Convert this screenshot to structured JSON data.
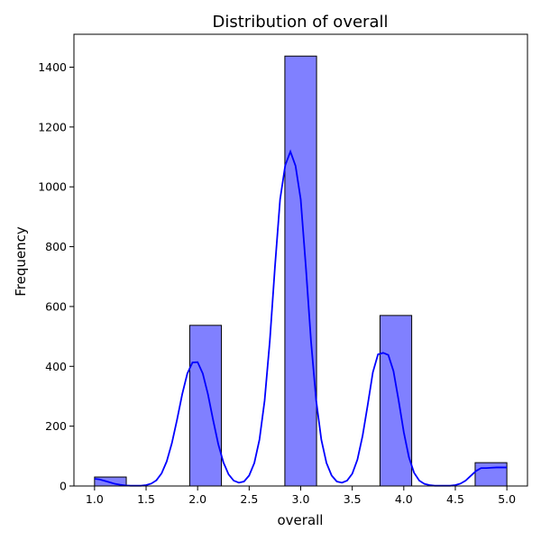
{
  "chart_data": {
    "type": "bar",
    "title": "Distribution of overall",
    "xlabel": "overall",
    "ylabel": "Frequency",
    "xlim": [
      0.8,
      5.2
    ],
    "ylim": [
      0,
      1510
    ],
    "xticks": [
      1.0,
      1.5,
      2.0,
      2.5,
      3.0,
      3.5,
      4.0,
      4.5,
      5.0
    ],
    "xtick_labels": [
      "1.0",
      "1.5",
      "2.0",
      "2.5",
      "3.0",
      "3.5",
      "4.0",
      "4.5",
      "5.0"
    ],
    "yticks": [
      0,
      200,
      400,
      600,
      800,
      1000,
      1200,
      1400
    ],
    "ytick_labels": [
      "0",
      "200",
      "400",
      "600",
      "800",
      "1000",
      "1200",
      "1400"
    ],
    "grid": false,
    "bar_color": "#8080ff",
    "bar_edge_color": "#000000",
    "kde_color": "#0000ff",
    "bins": [
      {
        "x0": 1.0,
        "x1": 1.3077,
        "count": 30
      },
      {
        "x0": 1.3077,
        "x1": 1.6154,
        "count": 0
      },
      {
        "x0": 1.6154,
        "x1": 1.9231,
        "count": 0
      },
      {
        "x0": 1.9231,
        "x1": 2.2308,
        "count": 537
      },
      {
        "x0": 2.2308,
        "x1": 2.5385,
        "count": 0
      },
      {
        "x0": 2.5385,
        "x1": 2.8462,
        "count": 0
      },
      {
        "x0": 2.8462,
        "x1": 3.1538,
        "count": 1437
      },
      {
        "x0": 3.1538,
        "x1": 3.4615,
        "count": 0
      },
      {
        "x0": 3.4615,
        "x1": 3.7692,
        "count": 0
      },
      {
        "x0": 3.7692,
        "x1": 4.0769,
        "count": 570
      },
      {
        "x0": 4.0769,
        "x1": 4.3846,
        "count": 0
      },
      {
        "x0": 4.3846,
        "x1": 4.6923,
        "count": 0
      },
      {
        "x0": 4.6923,
        "x1": 5.0,
        "count": 78
      }
    ],
    "kde": {
      "x": [
        1.0,
        1.05,
        1.1,
        1.15,
        1.2,
        1.25,
        1.3,
        1.35,
        1.4,
        1.45,
        1.5,
        1.55,
        1.6,
        1.65,
        1.7,
        1.75,
        1.8,
        1.85,
        1.9,
        1.95,
        2.0,
        2.05,
        2.1,
        2.15,
        2.2,
        2.25,
        2.3,
        2.35,
        2.4,
        2.45,
        2.5,
        2.55,
        2.6,
        2.65,
        2.7,
        2.75,
        2.8,
        2.85,
        2.9,
        2.95,
        3.0,
        3.05,
        3.1,
        3.15,
        3.2,
        3.25,
        3.3,
        3.35,
        3.4,
        3.45,
        3.5,
        3.55,
        3.6,
        3.65,
        3.7,
        3.75,
        3.8,
        3.85,
        3.9,
        3.95,
        4.0,
        4.05,
        4.1,
        4.15,
        4.2,
        4.25,
        4.3,
        4.35,
        4.4,
        4.45,
        4.5,
        4.55,
        4.6,
        4.65,
        4.7,
        4.75,
        4.8,
        4.85,
        4.9,
        4.95,
        5.0
      ],
      "y": [
        24,
        22,
        17,
        12,
        7,
        4,
        2,
        1,
        1,
        1,
        3,
        8,
        19,
        42,
        82,
        143,
        221,
        306,
        376,
        413,
        414,
        376,
        307,
        221,
        140,
        79,
        39,
        18,
        11,
        15,
        35,
        77,
        155,
        286,
        483,
        732,
        958,
        1072,
        1118,
        1070,
        958,
        732,
        484,
        286,
        155,
        77,
        35,
        15,
        11,
        18,
        41,
        88,
        167,
        271,
        380,
        440,
        445,
        438,
        384,
        286,
        180,
        96,
        44,
        18,
        7,
        3,
        1,
        1,
        1,
        1,
        3,
        8,
        18,
        34,
        50,
        60,
        60,
        61,
        62,
        62,
        62
      ]
    }
  }
}
